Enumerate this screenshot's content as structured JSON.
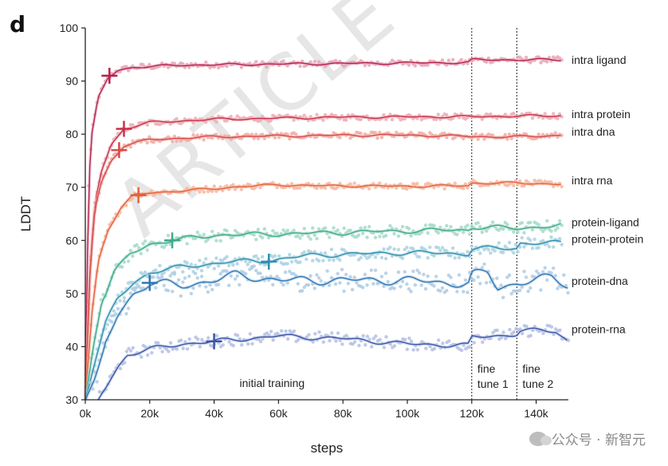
{
  "panel_letter": "d",
  "background_mark": "ARTICLE",
  "watermark": "公众号 · 新智元",
  "chart_data": {
    "type": "line",
    "xlabel": "steps",
    "ylabel": "LDDT",
    "xlim": [
      0,
      150000
    ],
    "ylim": [
      30,
      100
    ],
    "x_ticks": [
      0,
      20000,
      40000,
      60000,
      80000,
      100000,
      120000,
      140000
    ],
    "x_tick_labels": [
      "0k",
      "20k",
      "40k",
      "60k",
      "80k",
      "100k",
      "120k",
      "140k"
    ],
    "y_ticks": [
      30,
      40,
      50,
      60,
      70,
      80,
      90,
      100
    ],
    "y_tick_labels": [
      "30",
      "40",
      "50",
      "60",
      "70",
      "80",
      "90",
      "100"
    ],
    "grid": false,
    "phase_boundaries": [
      120000,
      134000
    ],
    "phase_labels": [
      {
        "text": "initial training",
        "x": 58000
      },
      {
        "text": "fine tune 1",
        "x": 121000
      },
      {
        "text": "fine tune 2",
        "x": 135000
      }
    ],
    "series": [
      {
        "name": "intra ligand",
        "color": "#b5234b",
        "light": "#e8a4b8",
        "points": [
          [
            0,
            30
          ],
          [
            1000,
            70
          ],
          [
            2000,
            80
          ],
          [
            4000,
            87
          ],
          [
            7000,
            90.5
          ],
          [
            10000,
            92
          ],
          [
            15000,
            92.6
          ],
          [
            30000,
            93
          ],
          [
            60000,
            93.2
          ],
          [
            100000,
            93.4
          ],
          [
            119000,
            93.5
          ],
          [
            120000,
            94
          ],
          [
            134000,
            94
          ],
          [
            148000,
            94
          ]
        ],
        "marker": [
          7500,
          91
        ]
      },
      {
        "name": "intra protein",
        "color": "#c6314b",
        "light": "#efacb4",
        "points": [
          [
            0,
            30
          ],
          [
            1500,
            55
          ],
          [
            3000,
            67
          ],
          [
            5000,
            73
          ],
          [
            8000,
            78
          ],
          [
            12000,
            81
          ],
          [
            20000,
            82.2
          ],
          [
            40000,
            82.8
          ],
          [
            80000,
            83.2
          ],
          [
            119000,
            83.3
          ],
          [
            134000,
            83.4
          ],
          [
            148000,
            83.5
          ]
        ],
        "marker": [
          12000,
          81
        ]
      },
      {
        "name": "intra dna",
        "color": "#d74a49",
        "light": "#f1aca4",
        "points": [
          [
            0,
            30
          ],
          [
            1500,
            55
          ],
          [
            3000,
            66
          ],
          [
            5000,
            71
          ],
          [
            8000,
            75
          ],
          [
            12000,
            77.8
          ],
          [
            20000,
            79
          ],
          [
            40000,
            79.5
          ],
          [
            80000,
            79.8
          ],
          [
            100000,
            79.8
          ],
          [
            119000,
            79.6
          ],
          [
            125000,
            79.5
          ],
          [
            134000,
            79.5
          ],
          [
            148000,
            79.8
          ]
        ],
        "marker": [
          10500,
          77
        ]
      },
      {
        "name": "intra rna",
        "color": "#e4623c",
        "light": "#f6b79f",
        "points": [
          [
            0,
            30
          ],
          [
            2000,
            46
          ],
          [
            4000,
            56
          ],
          [
            7000,
            62
          ],
          [
            11000,
            66
          ],
          [
            15000,
            68.5
          ],
          [
            20000,
            69
          ],
          [
            30000,
            69.3
          ],
          [
            45000,
            70
          ],
          [
            60000,
            70.5
          ],
          [
            70000,
            70.3
          ],
          [
            100000,
            70.2
          ],
          [
            119000,
            70.3
          ],
          [
            120000,
            70.8
          ],
          [
            134000,
            70.8
          ],
          [
            148000,
            70.6
          ]
        ],
        "marker": [
          16500,
          68.5
        ]
      },
      {
        "name": "protein-ligand",
        "color": "#3daa8d",
        "light": "#a6d9c9",
        "points": [
          [
            0,
            30
          ],
          [
            2500,
            40
          ],
          [
            5000,
            48
          ],
          [
            9000,
            54
          ],
          [
            14000,
            57.5
          ],
          [
            20000,
            59.3
          ],
          [
            27000,
            60
          ],
          [
            40000,
            61
          ],
          [
            60000,
            61.2
          ],
          [
            80000,
            61.5
          ],
          [
            100000,
            61.8
          ],
          [
            119000,
            62
          ],
          [
            120000,
            62.5
          ],
          [
            134000,
            62.3
          ],
          [
            148000,
            62.8
          ]
        ],
        "marker": [
          27000,
          60
        ]
      },
      {
        "name": "protein-protein",
        "color": "#2f8fb0",
        "light": "#a9d2e0",
        "points": [
          [
            0,
            30
          ],
          [
            3000,
            37
          ],
          [
            6000,
            44
          ],
          [
            10000,
            49
          ],
          [
            15000,
            52
          ],
          [
            20000,
            54
          ],
          [
            30000,
            55
          ],
          [
            45000,
            56
          ],
          [
            57000,
            56.2
          ],
          [
            70000,
            57.2
          ],
          [
            100000,
            57.7
          ],
          [
            119000,
            57.5
          ],
          [
            120000,
            58.5
          ],
          [
            134000,
            58.5
          ],
          [
            135000,
            59.5
          ],
          [
            148000,
            59.5
          ]
        ],
        "marker": [
          57000,
          56
        ]
      },
      {
        "name": "protein-dna",
        "color": "#2f76b4",
        "light": "#aecbe4",
        "points": [
          [
            0,
            30
          ],
          [
            3000,
            34
          ],
          [
            6000,
            40
          ],
          [
            10000,
            46
          ],
          [
            15000,
            50
          ],
          [
            20000,
            52
          ],
          [
            30000,
            51.5
          ],
          [
            40000,
            52.5
          ],
          [
            47000,
            53.5
          ],
          [
            60000,
            52.5
          ],
          [
            80000,
            52.5
          ],
          [
            100000,
            52.5
          ],
          [
            119000,
            51.8
          ],
          [
            120000,
            53.5
          ],
          [
            125000,
            54
          ],
          [
            128000,
            51
          ],
          [
            134000,
            52
          ],
          [
            145000,
            53
          ],
          [
            150000,
            51.5
          ]
        ],
        "marker": [
          20000,
          52
        ]
      },
      {
        "name": "protein-rna",
        "color": "#3a56a6",
        "light": "#b4c0e3",
        "points": [
          [
            4000,
            30
          ],
          [
            7000,
            33
          ],
          [
            10000,
            36
          ],
          [
            13000,
            38.5
          ],
          [
            20000,
            39.5
          ],
          [
            30000,
            40.5
          ],
          [
            40000,
            41
          ],
          [
            60000,
            42
          ],
          [
            80000,
            41.5
          ],
          [
            100000,
            40.5
          ],
          [
            119000,
            40.2
          ],
          [
            120000,
            41.8
          ],
          [
            134000,
            42.3
          ],
          [
            135000,
            43
          ],
          [
            146000,
            43
          ],
          [
            150000,
            41
          ]
        ],
        "marker": [
          40000,
          41
        ]
      }
    ]
  }
}
